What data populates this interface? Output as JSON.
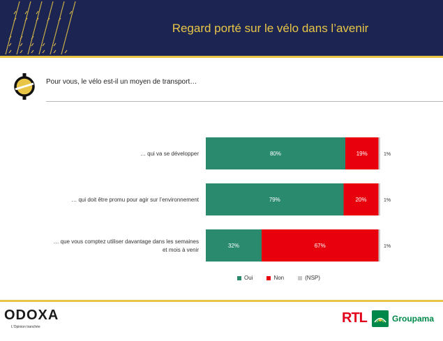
{
  "header": {
    "title": "Regard porté sur le vélo dans l’avenir"
  },
  "question": "Pour vous, le vélo est-il un moyen de transport…",
  "chart_data": {
    "type": "bar",
    "orientation": "horizontal",
    "stacked": true,
    "categories": [
      [
        "… qui va se développer"
      ],
      [
        "… qui doit être promu pour agir sur l’environnement"
      ],
      [
        "… que vous comptez utiliser davantage dans les semaines",
        "et mois à venir"
      ]
    ],
    "series": [
      {
        "name": "Oui",
        "color": "#2a8a6e",
        "values": [
          80,
          79,
          32
        ],
        "labels": [
          "80%",
          "79%",
          "32%"
        ]
      },
      {
        "name": "Non",
        "color": "#e8000d",
        "values": [
          19,
          20,
          67
        ],
        "labels": [
          "19%",
          "20%",
          "67%"
        ]
      },
      {
        "name": "(NSP)",
        "color": "#c9c9c9",
        "values": [
          1,
          1,
          1
        ],
        "labels": [
          "1%",
          "1%",
          "1%"
        ]
      }
    ],
    "xlim": [
      0,
      100
    ],
    "legend": "bottom"
  },
  "footer": {
    "brand": "ODOXA",
    "tagline": "L’Opinion tranchée",
    "partner1": "RTL",
    "partner2": "Groupama"
  },
  "colors": {
    "navy": "#1c2552",
    "gold": "#e8c547",
    "oui": "#2a8a6e",
    "non": "#e8000d",
    "nsp": "#c9c9c9"
  }
}
